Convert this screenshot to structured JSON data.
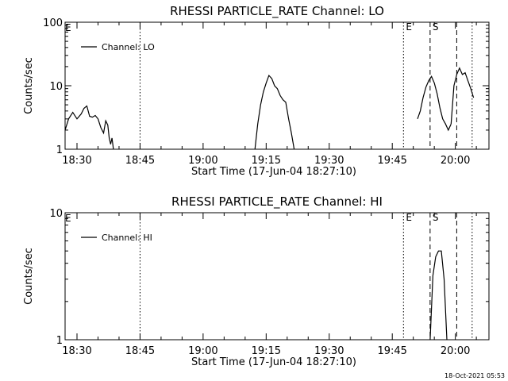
{
  "timestamp": "18-Oct-2021 05:53",
  "chart_data": [
    {
      "type": "line",
      "title": "RHESSI PARTICLE_RATE Channel: LO",
      "xlabel": "Start Time (17-Jun-04 18:27:10)",
      "ylabel": "Counts/sec",
      "yscale": "log",
      "ylim": [
        1,
        100
      ],
      "ytick_labels": [
        "1",
        "10",
        "100"
      ],
      "xlim": [
        "18:27:10",
        "20:08:00"
      ],
      "xtick_labels": [
        "18:30",
        "18:45",
        "19:00",
        "19:15",
        "19:30",
        "19:45",
        "20:00"
      ],
      "legend": {
        "position": "top-left",
        "entries": [
          "Channel: LO"
        ]
      },
      "series": [
        {
          "name": "Channel: LO",
          "segments": [
            {
              "x": [
                "18:27:10",
                "18:28:00",
                "18:29:00",
                "18:30:00",
                "18:31:00",
                "18:31:40",
                "18:32:20",
                "18:33:00",
                "18:33:40",
                "18:34:20",
                "18:35:00",
                "18:35:40",
                "18:36:20",
                "18:36:50",
                "18:37:20",
                "18:37:40",
                "18:38:00",
                "18:38:20",
                "18:38:40"
              ],
              "y": [
                2.0,
                3.0,
                3.8,
                3.0,
                3.6,
                4.4,
                4.8,
                3.3,
                3.2,
                3.4,
                3.0,
                2.2,
                1.8,
                2.8,
                2.4,
                1.5,
                1.2,
                1.5,
                1.0
              ]
            },
            {
              "x": [
                "19:12:20",
                "19:13:00",
                "19:13:40",
                "19:14:20",
                "19:15:00",
                "19:15:40",
                "19:16:20",
                "19:17:00",
                "19:17:40",
                "19:18:20",
                "19:19:00",
                "19:19:40",
                "19:20:20",
                "19:21:00",
                "19:21:40"
              ],
              "y": [
                1.0,
                2.5,
                5.0,
                8.0,
                11.0,
                14.5,
                13.0,
                10.0,
                9.0,
                7.0,
                6.0,
                5.5,
                3.0,
                1.8,
                1.0
              ]
            },
            {
              "x": [
                "19:51:00",
                "19:51:40",
                "19:52:20",
                "19:53:00",
                "19:53:40",
                "19:54:20",
                "19:55:00",
                "19:55:40",
                "19:56:20",
                "19:57:00",
                "19:57:40",
                "19:58:20",
                "19:59:00"
              ],
              "y": [
                3.0,
                4.0,
                6.5,
                9.5,
                12.0,
                14.0,
                11.0,
                7.5,
                4.5,
                3.0,
                2.5,
                2.0,
                2.5
              ]
            },
            {
              "x": [
                "19:59:00",
                "19:59:40",
                "20:00:20",
                "20:01:00",
                "20:01:40",
                "20:02:20",
                "20:03:00",
                "20:03:40",
                "20:04:20"
              ],
              "y": [
                2.5,
                10.0,
                15.0,
                19.0,
                15.0,
                16.0,
                12.0,
                9.0,
                6.5
              ]
            }
          ]
        }
      ],
      "flag_lines": [
        {
          "x": "18:45:00",
          "style": "dotted"
        },
        {
          "x": "19:47:40",
          "style": "dotted",
          "label": "E"
        },
        {
          "x": "19:54:00",
          "style": "dashed",
          "label": "S"
        },
        {
          "x": "20:00:20",
          "style": "dashed"
        },
        {
          "x": "20:04:00",
          "style": "dotted"
        }
      ],
      "corner_label": "E"
    },
    {
      "type": "line",
      "title": "RHESSI PARTICLE_RATE Channel: HI",
      "xlabel": "Start Time (17-Jun-04 18:27:10)",
      "ylabel": "Counts/sec",
      "yscale": "log",
      "ylim": [
        1,
        10
      ],
      "ytick_labels": [
        "1",
        "10"
      ],
      "xlim": [
        "18:27:10",
        "20:08:00"
      ],
      "xtick_labels": [
        "18:30",
        "18:45",
        "19:00",
        "19:15",
        "19:30",
        "19:45",
        "20:00"
      ],
      "legend": {
        "position": "top-left",
        "entries": [
          "Channel: HI"
        ]
      },
      "series": [
        {
          "name": "Channel: HI",
          "segments": [
            {
              "x": [
                "19:54:00",
                "19:54:40",
                "19:55:20",
                "19:56:00",
                "19:56:40",
                "19:57:20",
                "19:58:00"
              ],
              "y": [
                1.0,
                3.2,
                4.5,
                5.0,
                5.0,
                3.0,
                1.0
              ]
            }
          ]
        }
      ],
      "flag_lines": [
        {
          "x": "18:45:00",
          "style": "dotted"
        },
        {
          "x": "19:47:40",
          "style": "dotted",
          "label": "E"
        },
        {
          "x": "19:54:00",
          "style": "dashed",
          "label": "S"
        },
        {
          "x": "20:00:20",
          "style": "dashed"
        },
        {
          "x": "20:04:00",
          "style": "dotted"
        }
      ],
      "corner_label": "E"
    }
  ]
}
